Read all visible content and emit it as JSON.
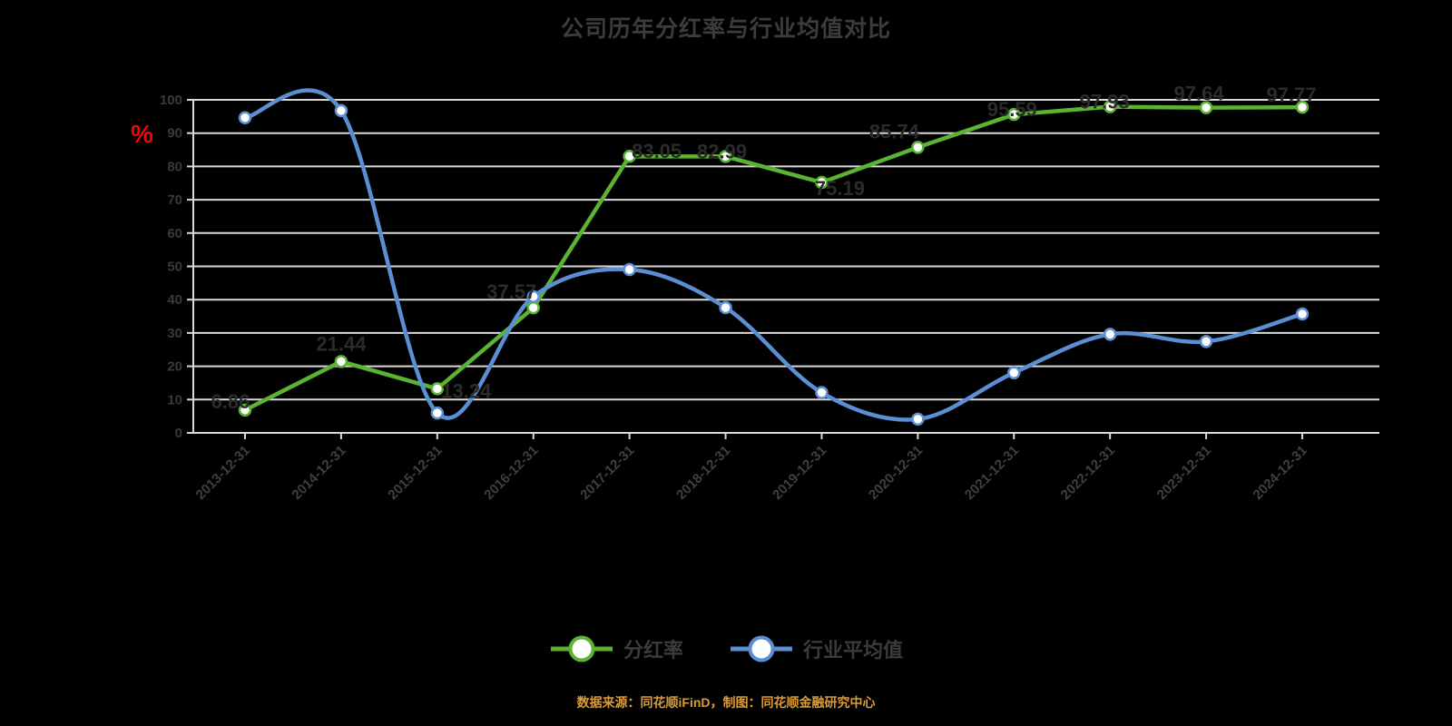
{
  "title": "公司历年分红率与行业均值对比",
  "y_axis": {
    "unit": "%",
    "unit_color": "#ff0000",
    "tick_color": "#3a3a3a"
  },
  "footer": {
    "text": "数据来源：同花顺iFinD，制图：同花顺金融研究中心",
    "color": "#d99c3a"
  },
  "chart_data": {
    "type": "line",
    "title": "公司历年分红率与行业均值对比",
    "xlabel": "",
    "ylabel": "%",
    "ylim": [
      0,
      100
    ],
    "y_ticks": [
      0,
      10,
      20,
      30,
      40,
      50,
      60,
      70,
      80,
      90,
      100
    ],
    "grid": true,
    "grid_color": "#d9d9d9",
    "legend_position": "bottom",
    "categories": [
      "2013-12-31",
      "2014-12-31",
      "2015-12-31",
      "2016-12-31",
      "2017-12-31",
      "2018-12-31",
      "2019-12-31",
      "2020-12-31",
      "2021-12-31",
      "2022-12-31",
      "2023-12-31",
      "2024-12-31"
    ],
    "series": [
      {
        "name": "分红率",
        "color": "#5ab431",
        "smooth": false,
        "labels_visible": true,
        "values": [
          6.86,
          21.44,
          13.24,
          37.57,
          83.05,
          82.99,
          75.19,
          85.74,
          95.59,
          97.93,
          97.64,
          97.77
        ]
      },
      {
        "name": "行业平均值",
        "color": "#5b8fd4",
        "smooth": true,
        "labels_visible": false,
        "values": [
          94.62,
          96.75,
          5.95,
          40.92,
          49.05,
          37.6,
          12.08,
          4.13,
          18.06,
          29.61,
          27.42,
          35.68
        ]
      }
    ]
  }
}
